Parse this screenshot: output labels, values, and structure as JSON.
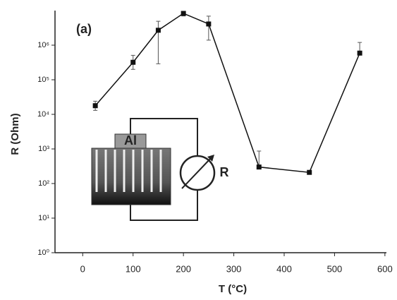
{
  "chart_data": {
    "type": "line",
    "xlabel": "T (°C)",
    "ylabel": "R (Ohm)",
    "annotation": "(a)",
    "inset_labels": [
      "Al",
      "R"
    ],
    "log_y": true,
    "color": "#111111",
    "xlim": [
      -55,
      603
    ],
    "xticks": [
      0,
      100,
      200,
      300,
      400,
      500,
      600
    ],
    "ylim": [
      1,
      10000000
    ],
    "yticks": [
      {
        "value": 1,
        "label": "10⁰"
      },
      {
        "value": 10,
        "label": "10¹"
      },
      {
        "value": 100,
        "label": "10²"
      },
      {
        "value": 1000,
        "label": "10³"
      },
      {
        "value": 10000,
        "label": "10⁴"
      },
      {
        "value": 100000,
        "label": "10⁵"
      },
      {
        "value": 1000000,
        "label": "10⁶"
      }
    ],
    "x": [
      25,
      100,
      150,
      200,
      250,
      350,
      450,
      550
    ],
    "values": [
      17800,
      320000,
      2700000,
      8300000,
      4100000,
      300,
      210,
      590000
    ],
    "err_low": [
      13000,
      200000,
      290000,
      7000000,
      1400000,
      null,
      null,
      null
    ],
    "err_high": [
      24000,
      510000,
      4900000,
      9500000,
      6900000,
      870,
      null,
      1200000
    ]
  }
}
